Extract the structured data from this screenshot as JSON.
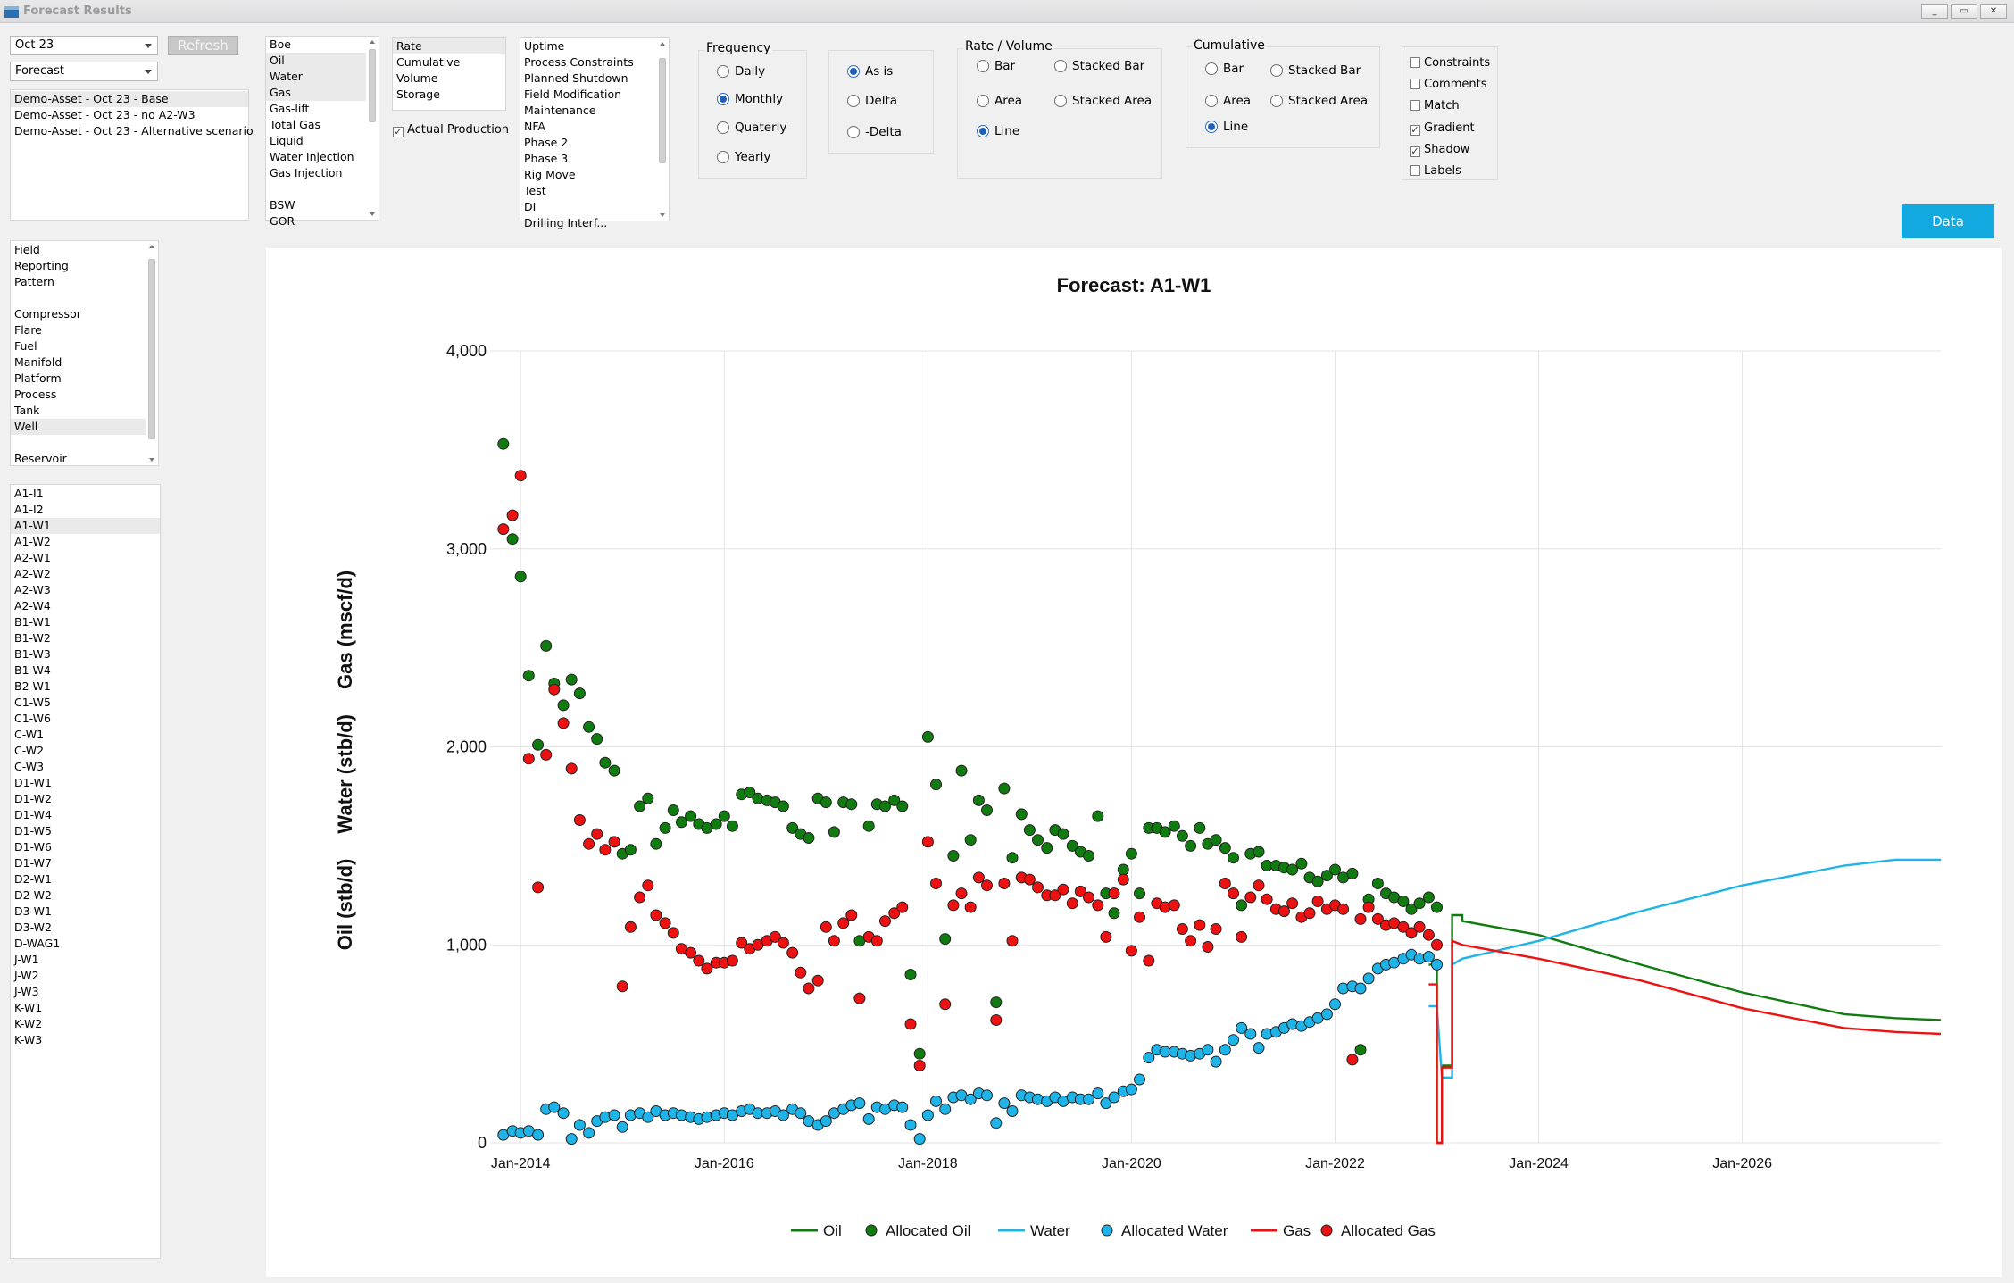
{
  "window": {
    "title": "Forecast Results",
    "buttons": [
      "_",
      "▭",
      "✕"
    ]
  },
  "controls": {
    "month_combo": "Oct 23",
    "type_combo": "Forecast",
    "refresh_label": "Refresh",
    "scenarios": [
      "Demo-Asset - Oct 23 - Base",
      "Demo-Asset - Oct 23 - no A2-W3",
      "Demo-Asset - Oct 23 - Alternative scenario"
    ],
    "scenario_selected": 0,
    "streams": [
      "Boe",
      "Oil",
      "Water",
      "Gas",
      "Gas-lift",
      "Total Gas",
      "Liquid",
      "Water Injection",
      "Gas Injection",
      "",
      "BSW",
      "GOR"
    ],
    "streams_selected": [
      1,
      2,
      3
    ],
    "measures": [
      "Rate",
      "Cumulative",
      "Volume",
      "Storage"
    ],
    "measures_selected": 0,
    "actual_production_label": "Actual Production",
    "actual_production_checked": true,
    "events": [
      "Uptime",
      "Process Constraints",
      "Planned Shutdown",
      "Field Modification",
      "Maintenance",
      "NFA",
      "Phase 2",
      "Phase 3",
      "Rig Move",
      "Test",
      "DI",
      "Drilling Interf..."
    ],
    "levels": [
      "Field",
      "Reporting",
      "Pattern",
      "",
      "Compressor",
      "Flare",
      "Fuel",
      "Manifold",
      "Platform",
      "Process",
      "Tank",
      "Well",
      "",
      "Reservoir"
    ],
    "levels_selected": 11,
    "wells": [
      "A1-I1",
      "A1-I2",
      "A1-W1",
      "A1-W2",
      "A2-W1",
      "A2-W2",
      "A2-W3",
      "A2-W4",
      "B1-W1",
      "B1-W2",
      "B1-W3",
      "B1-W4",
      "B2-W1",
      "C1-W5",
      "C1-W6",
      "C-W1",
      "C-W2",
      "C-W3",
      "D1-W1",
      "D1-W2",
      "D1-W4",
      "D1-W5",
      "D1-W6",
      "D1-W7",
      "D2-W1",
      "D2-W2",
      "D3-W1",
      "D3-W2",
      "D-WAG1",
      "J-W1",
      "J-W2",
      "J-W3",
      "K-W1",
      "K-W2",
      "K-W3"
    ],
    "wells_selected": 2,
    "frequency": {
      "title": "Frequency",
      "options": [
        "Daily",
        "Monthly",
        "Quaterly",
        "Yearly"
      ],
      "selected": 1
    },
    "mode": {
      "options": [
        "As is",
        "Delta",
        "-Delta"
      ],
      "selected": 0
    },
    "rate_volume": {
      "title": "Rate / Volume",
      "options": [
        "Bar",
        "Stacked Bar",
        "Area",
        "Stacked Area",
        "Line"
      ],
      "selected": 4
    },
    "cumulative": {
      "title": "Cumulative",
      "options": [
        "Bar",
        "Stacked Bar",
        "Area",
        "Stacked Area",
        "Line"
      ],
      "selected": 4
    },
    "options": [
      {
        "label": "Constraints",
        "checked": false
      },
      {
        "label": "Comments",
        "checked": false
      },
      {
        "label": "Match",
        "checked": false
      },
      {
        "label": "Gradient",
        "checked": true
      },
      {
        "label": "Shadow",
        "checked": true
      },
      {
        "label": "Labels",
        "checked": false
      }
    ],
    "data_button": "Data"
  },
  "chart_data": {
    "type": "scatter",
    "title": "Forecast:  A1-W1",
    "ylabel_parts": [
      "Oil (stb/d)",
      "Water (stb/d)",
      "Gas (mscf/d)"
    ],
    "xlabel": "",
    "ylim": [
      0,
      4000
    ],
    "xlim": [
      2013.7,
      2027.95
    ],
    "yticks": [
      0,
      1000,
      2000,
      3000,
      4000
    ],
    "ytick_labels": [
      "0",
      "1,000",
      "2,000",
      "3,000",
      "4,000"
    ],
    "xticks": [
      2014,
      2016,
      2018,
      2020,
      2022,
      2024,
      2026
    ],
    "xtick_labels": [
      "Jan-2014",
      "Jan-2016",
      "Jan-2018",
      "Jan-2020",
      "Jan-2022",
      "Jan-2024",
      "Jan-2026"
    ],
    "colors": {
      "oil": "#107c10",
      "water": "#1eb4e8",
      "gas": "#ee1111"
    },
    "legend": [
      "Oil",
      "Allocated Oil",
      "Water",
      "Allocated Water",
      "Gas",
      "Allocated Gas"
    ],
    "legend_position": "bottom",
    "grid": true,
    "series": [
      {
        "name": "Allocated Oil",
        "kind": "points",
        "color": "#107c10",
        "x": [
          2013.83,
          2013.92,
          2014.0,
          2014.08,
          2014.17,
          2014.25,
          2014.33,
          2014.42,
          2014.5,
          2014.58,
          2014.67,
          2014.75,
          2014.83,
          2014.92,
          2015.0,
          2015.08,
          2015.17,
          2015.25,
          2015.33,
          2015.42,
          2015.5,
          2015.58,
          2015.67,
          2015.75,
          2015.83,
          2015.92,
          2016.0,
          2016.08,
          2016.17,
          2016.25,
          2016.33,
          2016.42,
          2016.5,
          2016.58,
          2016.67,
          2016.75,
          2016.83,
          2016.92,
          2017.0,
          2017.08,
          2017.17,
          2017.25,
          2017.33,
          2017.42,
          2017.5,
          2017.58,
          2017.67,
          2017.75,
          2017.83,
          2017.92,
          2018.0,
          2018.08,
          2018.17,
          2018.25,
          2018.33,
          2018.42,
          2018.5,
          2018.58,
          2018.67,
          2018.75,
          2018.83,
          2018.92,
          2019.0,
          2019.08,
          2019.17,
          2019.25,
          2019.33,
          2019.42,
          2019.5,
          2019.58,
          2019.67,
          2019.75,
          2019.83,
          2019.92,
          2020.0,
          2020.08,
          2020.17,
          2020.25,
          2020.33,
          2020.42,
          2020.5,
          2020.58,
          2020.67,
          2020.75,
          2020.83,
          2020.92,
          2021.0,
          2021.08,
          2021.17,
          2021.25,
          2021.33,
          2021.42,
          2021.5,
          2021.58,
          2021.67,
          2021.75,
          2021.83,
          2021.92,
          2022.0,
          2022.08,
          2022.17,
          2022.25,
          2022.33,
          2022.42,
          2022.5,
          2022.58,
          2022.67,
          2022.75,
          2022.83,
          2022.92,
          2023.0
        ],
        "y": [
          3530,
          3050,
          2860,
          2360,
          2010,
          2510,
          2320,
          2210,
          2340,
          2270,
          2100,
          2040,
          1920,
          1880,
          1460,
          1480,
          1700,
          1740,
          1510,
          1590,
          1680,
          1620,
          1650,
          1610,
          1590,
          1610,
          1650,
          1600,
          1760,
          1770,
          1740,
          1730,
          1720,
          1700,
          1590,
          1560,
          1540,
          1740,
          1720,
          1570,
          1720,
          1710,
          1020,
          1600,
          1710,
          1700,
          1730,
          1700,
          850,
          450,
          2050,
          1810,
          1030,
          1450,
          1880,
          1530,
          1730,
          1680,
          710,
          1790,
          1440,
          1660,
          1580,
          1530,
          1490,
          1580,
          1560,
          1500,
          1470,
          1450,
          1650,
          1260,
          1160,
          1380,
          1460,
          1260,
          1590,
          1590,
          1570,
          1600,
          1550,
          1500,
          1590,
          1510,
          1530,
          1490,
          1440,
          1200,
          1460,
          1470,
          1400,
          1400,
          1390,
          1380,
          1410,
          1340,
          1320,
          1350,
          1380,
          1340,
          1360,
          470,
          1230,
          1310,
          1260,
          1240,
          1220,
          1180,
          1210,
          1240,
          1190
        ]
      },
      {
        "name": "Allocated Gas",
        "kind": "points",
        "color": "#ee1111",
        "x": [
          2013.83,
          2013.92,
          2014.0,
          2014.08,
          2014.17,
          2014.25,
          2014.33,
          2014.42,
          2014.5,
          2014.58,
          2014.67,
          2014.75,
          2014.83,
          2014.92,
          2015.0,
          2015.08,
          2015.17,
          2015.25,
          2015.33,
          2015.42,
          2015.5,
          2015.58,
          2015.67,
          2015.75,
          2015.83,
          2015.92,
          2016.0,
          2016.08,
          2016.17,
          2016.25,
          2016.33,
          2016.42,
          2016.5,
          2016.58,
          2016.67,
          2016.75,
          2016.83,
          2016.92,
          2017.0,
          2017.08,
          2017.17,
          2017.25,
          2017.33,
          2017.42,
          2017.5,
          2017.58,
          2017.67,
          2017.75,
          2017.83,
          2017.92,
          2018.0,
          2018.08,
          2018.17,
          2018.25,
          2018.33,
          2018.42,
          2018.5,
          2018.58,
          2018.67,
          2018.75,
          2018.83,
          2018.92,
          2019.0,
          2019.08,
          2019.17,
          2019.25,
          2019.33,
          2019.42,
          2019.5,
          2019.58,
          2019.67,
          2019.75,
          2019.83,
          2019.92,
          2020.0,
          2020.08,
          2020.17,
          2020.25,
          2020.33,
          2020.42,
          2020.5,
          2020.58,
          2020.67,
          2020.75,
          2020.83,
          2020.92,
          2021.0,
          2021.08,
          2021.17,
          2021.25,
          2021.33,
          2021.42,
          2021.5,
          2021.58,
          2021.67,
          2021.75,
          2021.83,
          2021.92,
          2022.0,
          2022.08,
          2022.17,
          2022.25,
          2022.33,
          2022.42,
          2022.5,
          2022.58,
          2022.67,
          2022.75,
          2022.83,
          2022.92,
          2023.0
        ],
        "y": [
          3100,
          3170,
          3370,
          1940,
          1290,
          1960,
          2290,
          2120,
          1890,
          1630,
          1510,
          1560,
          1480,
          1520,
          790,
          1090,
          1240,
          1300,
          1150,
          1110,
          1060,
          980,
          960,
          920,
          880,
          910,
          910,
          920,
          1010,
          980,
          1000,
          1020,
          1040,
          1010,
          960,
          860,
          780,
          820,
          1090,
          1020,
          1110,
          1150,
          730,
          1040,
          1020,
          1120,
          1160,
          1190,
          600,
          390,
          1520,
          1310,
          700,
          1200,
          1260,
          1190,
          1340,
          1300,
          620,
          1310,
          1020,
          1340,
          1330,
          1290,
          1250,
          1250,
          1280,
          1210,
          1270,
          1240,
          1200,
          1040,
          1260,
          1330,
          970,
          1140,
          920,
          1210,
          1190,
          1200,
          1080,
          1020,
          1100,
          990,
          1080,
          1310,
          1260,
          1040,
          1240,
          1300,
          1230,
          1180,
          1170,
          1210,
          1140,
          1160,
          1220,
          1180,
          1200,
          1180,
          420,
          1130,
          1190,
          1130,
          1100,
          1110,
          1090,
          1060,
          1090,
          1050,
          1000
        ]
      },
      {
        "name": "Allocated Water",
        "kind": "points",
        "color": "#1eb4e8",
        "x": [
          2013.83,
          2013.92,
          2014.0,
          2014.08,
          2014.17,
          2014.25,
          2014.33,
          2014.42,
          2014.5,
          2014.58,
          2014.67,
          2014.75,
          2014.83,
          2014.92,
          2015.0,
          2015.08,
          2015.17,
          2015.25,
          2015.33,
          2015.42,
          2015.5,
          2015.58,
          2015.67,
          2015.75,
          2015.83,
          2015.92,
          2016.0,
          2016.08,
          2016.17,
          2016.25,
          2016.33,
          2016.42,
          2016.5,
          2016.58,
          2016.67,
          2016.75,
          2016.83,
          2016.92,
          2017.0,
          2017.08,
          2017.17,
          2017.25,
          2017.33,
          2017.42,
          2017.5,
          2017.58,
          2017.67,
          2017.75,
          2017.83,
          2017.92,
          2018.0,
          2018.08,
          2018.17,
          2018.25,
          2018.33,
          2018.42,
          2018.5,
          2018.58,
          2018.67,
          2018.75,
          2018.83,
          2018.92,
          2019.0,
          2019.08,
          2019.17,
          2019.25,
          2019.33,
          2019.42,
          2019.5,
          2019.58,
          2019.67,
          2019.75,
          2019.83,
          2019.92,
          2020.0,
          2020.08,
          2020.17,
          2020.25,
          2020.33,
          2020.42,
          2020.5,
          2020.58,
          2020.67,
          2020.75,
          2020.83,
          2020.92,
          2021.0,
          2021.08,
          2021.17,
          2021.25,
          2021.33,
          2021.42,
          2021.5,
          2021.58,
          2021.67,
          2021.75,
          2021.83,
          2021.92,
          2022.0,
          2022.08,
          2022.17,
          2022.25,
          2022.33,
          2022.42,
          2022.5,
          2022.58,
          2022.67,
          2022.75,
          2022.83,
          2022.92,
          2023.0
        ],
        "y": [
          40,
          60,
          50,
          60,
          40,
          170,
          180,
          150,
          20,
          90,
          50,
          110,
          130,
          140,
          80,
          140,
          150,
          130,
          160,
          140,
          150,
          140,
          130,
          120,
          130,
          140,
          150,
          140,
          160,
          170,
          150,
          150,
          160,
          140,
          170,
          150,
          110,
          90,
          110,
          150,
          170,
          190,
          200,
          120,
          180,
          170,
          190,
          180,
          90,
          20,
          140,
          210,
          170,
          230,
          240,
          220,
          250,
          240,
          100,
          200,
          160,
          240,
          230,
          220,
          210,
          230,
          210,
          230,
          220,
          220,
          250,
          200,
          230,
          260,
          270,
          320,
          430,
          470,
          460,
          460,
          450,
          440,
          450,
          470,
          410,
          470,
          520,
          580,
          550,
          480,
          550,
          560,
          580,
          600,
          590,
          610,
          630,
          650,
          700,
          780,
          790,
          780,
          830,
          880,
          900,
          910,
          930,
          950,
          930,
          940,
          900
        ]
      },
      {
        "name": "Oil",
        "kind": "line",
        "color": "#107c10",
        "x": [
          2022.92,
          2023.0,
          2023.0,
          2023.05,
          2023.05,
          2023.15,
          2023.15,
          2023.25,
          2023.25,
          2024.0,
          2025.0,
          2026.0,
          2027.0,
          2027.5,
          2027.95
        ],
        "y": [
          900,
          900,
          0,
          0,
          390,
          390,
          1150,
          1150,
          1120,
          1050,
          900,
          760,
          650,
          630,
          620
        ]
      },
      {
        "name": "Water",
        "kind": "line",
        "color": "#1eb4e8",
        "x": [
          2022.92,
          2023.0,
          2023.05,
          2023.15,
          2023.15,
          2023.25,
          2024.0,
          2025.0,
          2026.0,
          2027.0,
          2027.5,
          2027.95
        ],
        "y": [
          690,
          690,
          330,
          330,
          900,
          930,
          1020,
          1170,
          1300,
          1400,
          1430,
          1430
        ]
      },
      {
        "name": "Gas",
        "kind": "line",
        "color": "#ee1111",
        "x": [
          2022.92,
          2023.0,
          2023.0,
          2023.05,
          2023.05,
          2023.15,
          2023.15,
          2023.25,
          2024.0,
          2025.0,
          2026.0,
          2027.0,
          2027.5,
          2027.95
        ],
        "y": [
          800,
          800,
          0,
          0,
          380,
          380,
          1020,
          1000,
          930,
          820,
          680,
          580,
          560,
          550
        ]
      }
    ]
  }
}
